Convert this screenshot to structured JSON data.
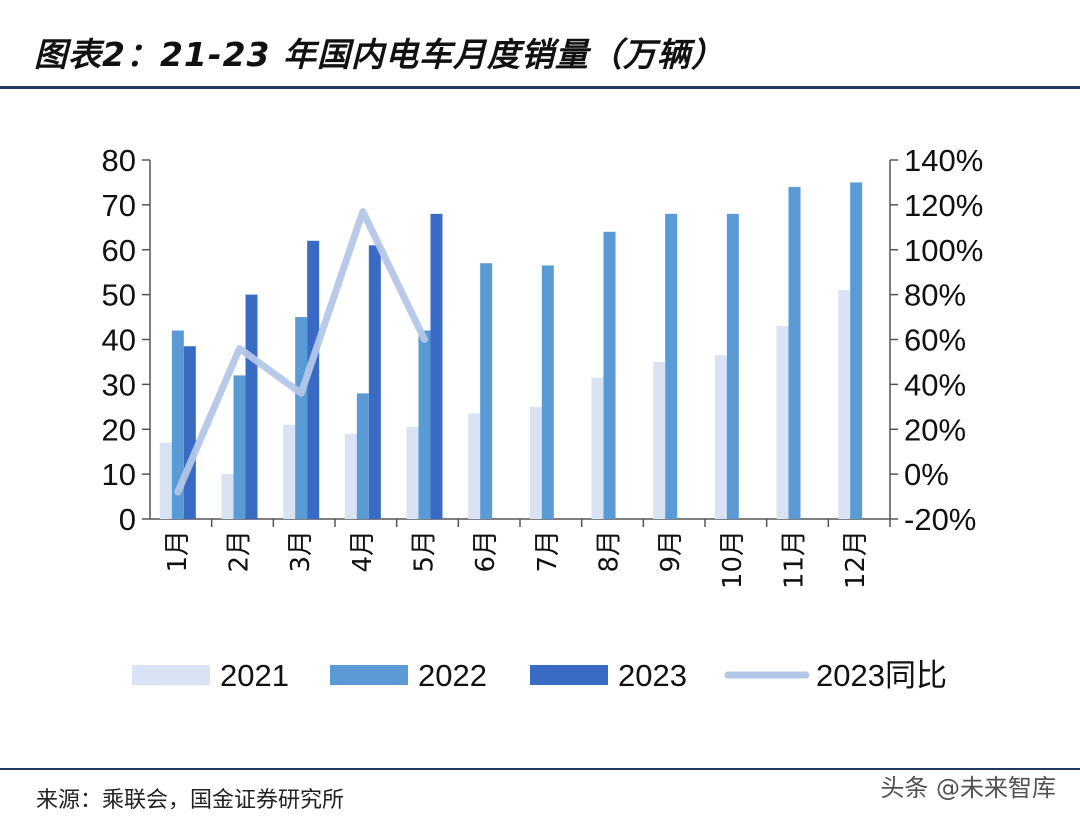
{
  "title": "图表2：21-23 年国内电车月度销量（万辆）",
  "source": "来源：乘联会，国金证券研究所",
  "watermark": "头条 @未来智库",
  "chart_data": {
    "type": "bar",
    "categories": [
      "1月",
      "2月",
      "3月",
      "4月",
      "5月",
      "6月",
      "7月",
      "8月",
      "9月",
      "10月",
      "11月",
      "12月"
    ],
    "series": [
      {
        "name": "2021",
        "type": "bar",
        "axis": "left",
        "color": "#dae3f3",
        "values": [
          17,
          10,
          21,
          19,
          20.5,
          23.5,
          25,
          31.5,
          35,
          36.5,
          43,
          51
        ]
      },
      {
        "name": "2022",
        "type": "bar",
        "axis": "left",
        "color": "#5b9bd5",
        "values": [
          42,
          32,
          45,
          28,
          42,
          57,
          56.5,
          64,
          68,
          68,
          74,
          75
        ]
      },
      {
        "name": "2023",
        "type": "bar",
        "axis": "left",
        "color": "#3a6bc4",
        "values": [
          38.5,
          50,
          62,
          61,
          68,
          null,
          null,
          null,
          null,
          null,
          null,
          null
        ]
      },
      {
        "name": "2023同比",
        "type": "line",
        "axis": "right",
        "color": "#b4c7e7",
        "values": [
          -8,
          56,
          36,
          117,
          60,
          null,
          null,
          null,
          null,
          null,
          null,
          null
        ]
      }
    ],
    "ylim": [
      0,
      80
    ],
    "yticks": [
      0,
      10,
      20,
      30,
      40,
      50,
      60,
      70,
      80
    ],
    "y2lim": [
      -20,
      140
    ],
    "y2ticks": [
      "-20%",
      "0%",
      "20%",
      "40%",
      "60%",
      "80%",
      "100%",
      "120%",
      "140%"
    ],
    "legend_position": "bottom",
    "grid": false
  }
}
